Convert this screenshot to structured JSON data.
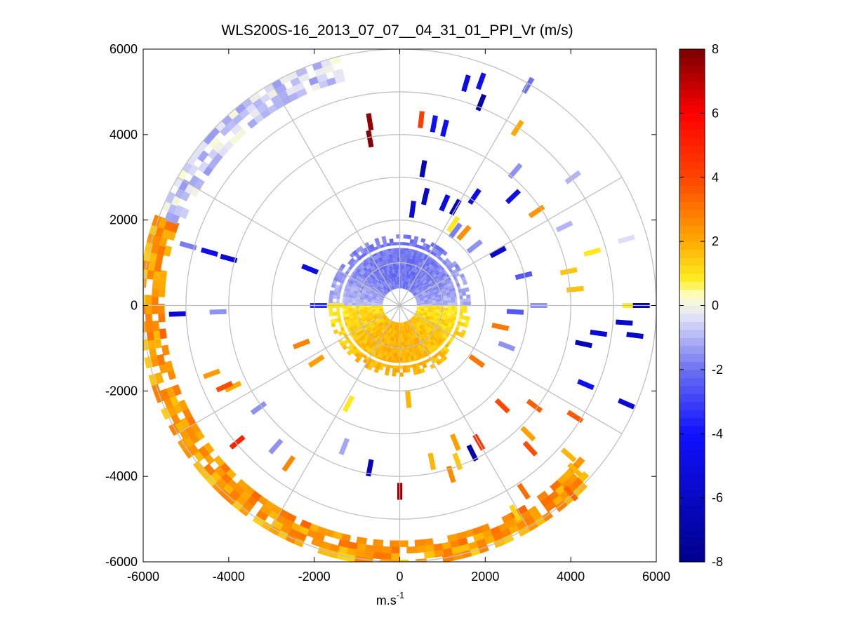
{
  "chart_data": {
    "type": "heatmap",
    "subtype": "polar-ppi",
    "title": "WLS200S-16_2013_07_07__04_31_01_PPI_Vr (m/s)",
    "xlabel": "m.s",
    "xlabel_superscript": "-1",
    "ylabel": "",
    "xlim": [
      -6000,
      6000
    ],
    "ylim": [
      -6000,
      6000
    ],
    "xticks": [
      -6000,
      -4000,
      -2000,
      0,
      2000,
      4000,
      6000
    ],
    "yticks": [
      -6000,
      -4000,
      -2000,
      0,
      2000,
      4000,
      6000
    ],
    "xtick_labels": [
      "-6000",
      "-4000",
      "-2000",
      "0",
      "2000",
      "4000",
      "6000"
    ],
    "ytick_labels": [
      "-6000",
      "-4000",
      "-2000",
      "0",
      "2000",
      "4000",
      "6000"
    ],
    "range_rings_m": [
      1000,
      2000,
      3000,
      4000,
      5000,
      6000
    ],
    "spokes_deg": [
      0,
      30,
      60,
      90,
      120,
      150,
      180,
      210,
      240,
      270,
      300,
      330
    ],
    "colorbar": {
      "limits": [
        -8,
        8
      ],
      "ticks": [
        -8,
        -6,
        -4,
        -2,
        0,
        2,
        4,
        6,
        8
      ],
      "tick_labels": [
        "-8",
        "-6",
        "-4",
        "-2",
        "0",
        "2",
        "4",
        "6",
        "8"
      ],
      "colormap_stops": [
        {
          "value": -8,
          "color": "#00008b"
        },
        {
          "value": -4,
          "color": "#1010ff"
        },
        {
          "value": -2,
          "color": "#6b70f0"
        },
        {
          "value": -0.3,
          "color": "#e4e4f8"
        },
        {
          "value": 0.3,
          "color": "#ffffd0"
        },
        {
          "value": 0.8,
          "color": "#ffee22"
        },
        {
          "value": 2,
          "color": "#ffaa00"
        },
        {
          "value": 4,
          "color": "#ff4400"
        },
        {
          "value": 6,
          "color": "#ff0000"
        },
        {
          "value": 8,
          "color": "#7a0000"
        }
      ]
    },
    "regions": [
      {
        "name": "inner-north-hemisphere",
        "r_min_m": 400,
        "r_max_m": 1650,
        "az_deg": [
          270,
          450
        ],
        "vr_mean": -1.7
      },
      {
        "name": "inner-south-hemisphere",
        "r_min_m": 400,
        "r_max_m": 1650,
        "az_deg": [
          90,
          270
        ],
        "vr_mean": 1.6
      },
      {
        "name": "outer-west-rim",
        "r_min_m": 5500,
        "r_max_m": 6000,
        "az_deg": [
          130,
          290
        ],
        "vr_mean": 2.0
      },
      {
        "name": "outer-northwest-rim",
        "r_min_m": 5400,
        "r_max_m": 5950,
        "az_deg": [
          290,
          345
        ],
        "vr_mean": -0.6
      }
    ],
    "scattered_bins": [
      {
        "x": -700,
        "y": 4300,
        "vr": 7.6
      },
      {
        "x": -700,
        "y": 3900,
        "vr": 7.8
      },
      {
        "x": 500,
        "y": 4350,
        "vr": 4.2
      },
      {
        "x": 800,
        "y": 4250,
        "vr": -4.2
      },
      {
        "x": 1050,
        "y": 4150,
        "vr": -4.5
      },
      {
        "x": 1550,
        "y": 5200,
        "vr": -5.0
      },
      {
        "x": 1900,
        "y": 5250,
        "vr": -4.6
      },
      {
        "x": 1900,
        "y": 4750,
        "vr": -7.0
      },
      {
        "x": 3000,
        "y": 5150,
        "vr": -2.0
      },
      {
        "x": 2750,
        "y": 4150,
        "vr": 2.0
      },
      {
        "x": 550,
        "y": 3200,
        "vr": -6.5
      },
      {
        "x": 2700,
        "y": 3150,
        "vr": -1.5
      },
      {
        "x": 2650,
        "y": 2550,
        "vr": -4.5
      },
      {
        "x": 3200,
        "y": 2200,
        "vr": 2.4
      },
      {
        "x": 4050,
        "y": 3000,
        "vr": -1.0
      },
      {
        "x": 3850,
        "y": 1850,
        "vr": -1.0
      },
      {
        "x": 5300,
        "y": 1550,
        "vr": -0.4
      },
      {
        "x": 4500,
        "y": 1250,
        "vr": 0.9
      },
      {
        "x": 4100,
        "y": 380,
        "vr": 1.6
      },
      {
        "x": 3950,
        "y": 800,
        "vr": 1.5
      },
      {
        "x": 5400,
        "y": 0,
        "vr": 0.8
      },
      {
        "x": 5650,
        "y": 0,
        "vr": -6.8
      },
      {
        "x": 5250,
        "y": -400,
        "vr": -5.8
      },
      {
        "x": 5500,
        "y": -700,
        "vr": -6.0
      },
      {
        "x": 4650,
        "y": -650,
        "vr": -5.5
      },
      {
        "x": 4300,
        "y": -900,
        "vr": -6.5
      },
      {
        "x": 4350,
        "y": -1850,
        "vr": -4.5
      },
      {
        "x": 5300,
        "y": -2300,
        "vr": -5.5
      },
      {
        "x": 4100,
        "y": -2600,
        "vr": 3.6
      },
      {
        "x": 3150,
        "y": -2350,
        "vr": 3.5
      },
      {
        "x": 2400,
        "y": -2350,
        "vr": 3.9
      },
      {
        "x": 3000,
        "y": -3000,
        "vr": 2.2
      },
      {
        "x": 3050,
        "y": -3350,
        "vr": 3.8
      },
      {
        "x": 3950,
        "y": -3500,
        "vr": 1.8
      },
      {
        "x": 4100,
        "y": -3850,
        "vr": 1.8
      },
      {
        "x": 4000,
        "y": -4400,
        "vr": 3.4
      },
      {
        "x": 2900,
        "y": -4350,
        "vr": 3.2
      },
      {
        "x": 2700,
        "y": -4850,
        "vr": 1.3
      },
      {
        "x": 1850,
        "y": -3200,
        "vr": 4.5
      },
      {
        "x": 1300,
        "y": -3200,
        "vr": 2.2
      },
      {
        "x": 1700,
        "y": -3450,
        "vr": -6.8
      },
      {
        "x": 750,
        "y": -3650,
        "vr": 1.8
      },
      {
        "x": 1200,
        "y": -3950,
        "vr": 2.6
      },
      {
        "x": 1350,
        "y": -3650,
        "vr": 1.5
      },
      {
        "x": 0,
        "y": -4350,
        "vr": 7.6
      },
      {
        "x": -700,
        "y": -3800,
        "vr": -6.5
      },
      {
        "x": -1300,
        "y": -3300,
        "vr": -1.2
      },
      {
        "x": -2600,
        "y": -3700,
        "vr": 2.7
      },
      {
        "x": -2900,
        "y": -3300,
        "vr": -1.5
      },
      {
        "x": -3800,
        "y": -3200,
        "vr": 5.0
      },
      {
        "x": -3300,
        "y": -2400,
        "vr": -1.5
      },
      {
        "x": -3900,
        "y": -1900,
        "vr": 2.0
      },
      {
        "x": -4400,
        "y": -1600,
        "vr": 2.3
      },
      {
        "x": -4100,
        "y": -1900,
        "vr": 3.8
      },
      {
        "x": -5200,
        "y": -200,
        "vr": -5.5
      },
      {
        "x": -4250,
        "y": -150,
        "vr": -1.5
      },
      {
        "x": -4000,
        "y": 1100,
        "vr": -5.5
      },
      {
        "x": -4950,
        "y": 1400,
        "vr": -1.8
      },
      {
        "x": -4450,
        "y": 1250,
        "vr": -4.5
      },
      {
        "x": -2100,
        "y": 850,
        "vr": -5.0
      },
      {
        "x": -1900,
        "y": 0,
        "vr": -3.5
      },
      {
        "x": -1500,
        "y": 0,
        "vr": 0.9
      },
      {
        "x": -2300,
        "y": -900,
        "vr": 2.8
      },
      {
        "x": -1950,
        "y": -1300,
        "vr": 2.2
      },
      {
        "x": -1200,
        "y": -2300,
        "vr": 0.9
      },
      {
        "x": 200,
        "y": -2200,
        "vr": 1.8
      },
      {
        "x": 1800,
        "y": -1300,
        "vr": 3.0
      },
      {
        "x": 2350,
        "y": -500,
        "vr": 3.0
      },
      {
        "x": 2500,
        "y": -950,
        "vr": -1.5
      },
      {
        "x": 2700,
        "y": -150,
        "vr": -2.5
      },
      {
        "x": 1300,
        "y": 1750,
        "vr": -1.8
      },
      {
        "x": 1500,
        "y": 1700,
        "vr": 2.5
      },
      {
        "x": 1250,
        "y": 1900,
        "vr": 0.9
      },
      {
        "x": 1750,
        "y": 1380,
        "vr": -1.5
      },
      {
        "x": 600,
        "y": 2550,
        "vr": -6.0
      },
      {
        "x": 1050,
        "y": 2400,
        "vr": -5.0
      },
      {
        "x": 1300,
        "y": 2300,
        "vr": -6.5
      },
      {
        "x": 1750,
        "y": 2550,
        "vr": -4.8
      },
      {
        "x": 300,
        "y": 2250,
        "vr": -5.5
      },
      {
        "x": 2300,
        "y": 1250,
        "vr": -5.8
      },
      {
        "x": 2900,
        "y": 700,
        "vr": -2.5
      },
      {
        "x": 3250,
        "y": 0,
        "vr": -1.5
      }
    ]
  }
}
